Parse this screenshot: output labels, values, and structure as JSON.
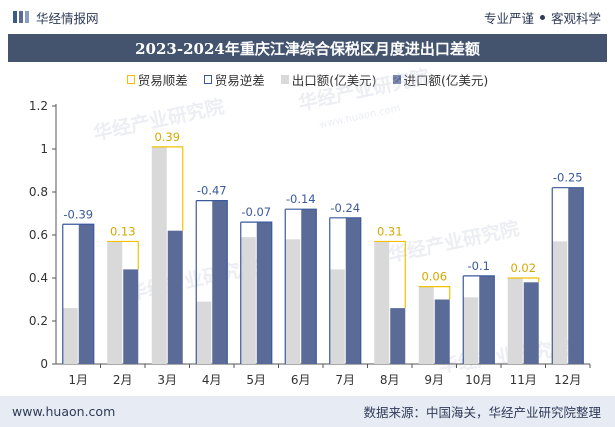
{
  "header": {
    "brand": "华经情报网",
    "tag_left": "专业严谨",
    "tag_right": "客观科学"
  },
  "title": "2023-2024年重庆江津综合保税区月度进出口差额",
  "legend": [
    {
      "key": "surplus",
      "label": "贸易顺差"
    },
    {
      "key": "deficit",
      "label": "贸易逆差"
    },
    {
      "key": "export",
      "label": "出口额(亿美元)"
    },
    {
      "key": "import",
      "label": "进口额(亿美元)"
    }
  ],
  "watermark": "华经产业研究院",
  "watermark_url": "www.huaon.com",
  "colors": {
    "export": "#d9d9d9",
    "import": "#5b6b98",
    "surplus": "#f2c200",
    "deficit": "#3a5a9c",
    "title_bg": "#44546f",
    "footer_bg": "#e7ebf3"
  },
  "chart_data": {
    "type": "bar",
    "categories": [
      "1月",
      "2月",
      "3月",
      "4月",
      "5月",
      "6月",
      "7月",
      "8月",
      "9月",
      "10月",
      "11月",
      "12月"
    ],
    "series": [
      {
        "name": "出口额(亿美元)",
        "values": [
          0.26,
          0.57,
          1.01,
          0.29,
          0.59,
          0.58,
          0.44,
          0.57,
          0.36,
          0.31,
          0.4,
          0.57
        ]
      },
      {
        "name": "进口额(亿美元)",
        "values": [
          0.65,
          0.44,
          0.62,
          0.76,
          0.66,
          0.72,
          0.68,
          0.26,
          0.3,
          0.41,
          0.38,
          0.82
        ]
      }
    ],
    "balance": [
      -0.39,
      0.13,
      0.39,
      -0.47,
      -0.07,
      -0.14,
      -0.24,
      0.31,
      0.06,
      -0.1,
      0.02,
      -0.25
    ],
    "balance_labels": [
      "-0.39",
      "0.13",
      "0.39",
      "-0.47",
      "-0.07",
      "-0.14",
      "-0.24",
      "0.31",
      "0.06",
      "-0.1",
      "0.02",
      "-0.25"
    ],
    "ylim": [
      0,
      1.2
    ],
    "yticks": [
      "0",
      "0.2",
      "0.4",
      "0.6",
      "0.8",
      "1",
      "1.2"
    ],
    "grid": false
  },
  "footer": {
    "website": "www.huaon.com",
    "source": "数据来源：中国海关，华经产业研究院整理"
  }
}
